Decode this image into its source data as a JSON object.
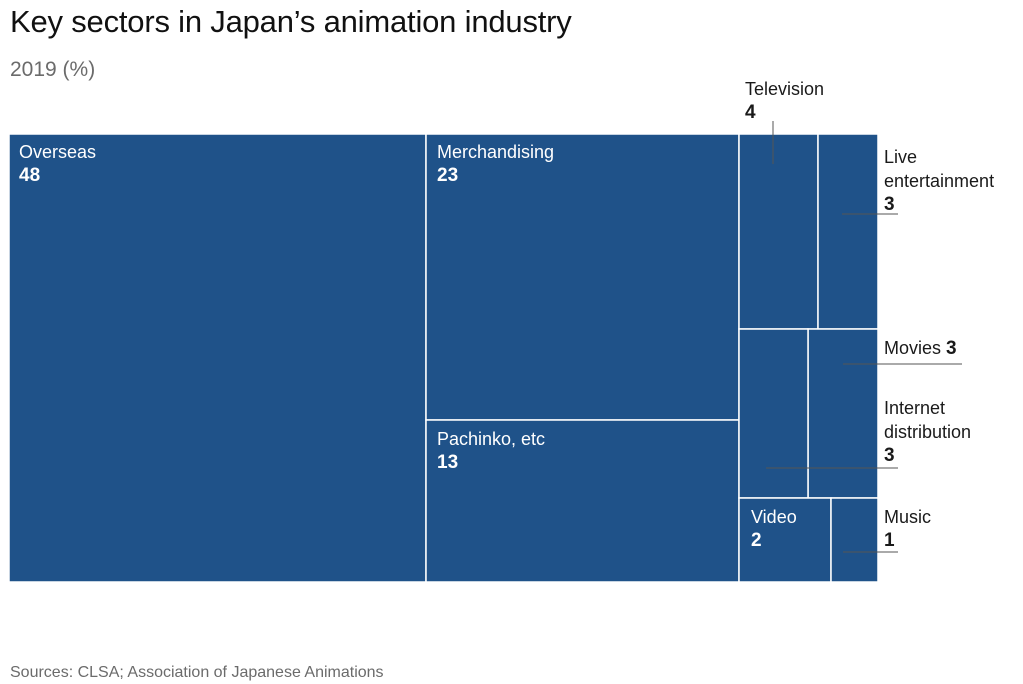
{
  "title": "Key sectors in Japan’s animation industry",
  "subtitle": "2019 (%)",
  "source": "Sources: CLSA; Association of Japanese Animations",
  "colors": {
    "tile": "#1f5289",
    "divider": "#ffffff",
    "leader": "#555555"
  },
  "chart_data": {
    "type": "treemap",
    "unit": "%",
    "items": [
      {
        "label": "Overseas",
        "value": 48
      },
      {
        "label": "Merchandising",
        "value": 23
      },
      {
        "label": "Pachinko, etc",
        "value": 13
      },
      {
        "label": "Television",
        "value": 4
      },
      {
        "label": "Live entertainment",
        "value": 3
      },
      {
        "label": "Movies",
        "value": 3
      },
      {
        "label": "Internet distribution",
        "value": 3
      },
      {
        "label": "Video",
        "value": 2
      },
      {
        "label": "Music",
        "value": 1
      }
    ]
  }
}
